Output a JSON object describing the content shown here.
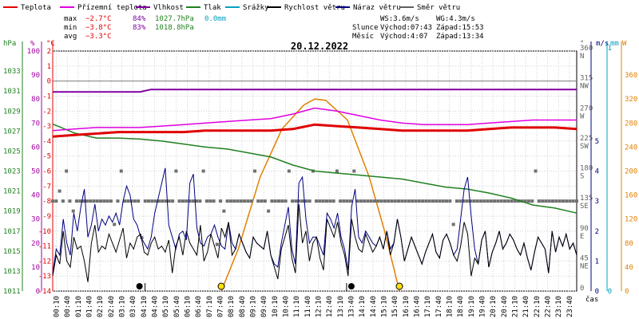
{
  "chart_data": {
    "type": "line",
    "title": "20.12.2022",
    "legend": [
      {
        "name": "Teplota",
        "color": "#e00000"
      },
      {
        "name": "Přízemní teplota",
        "color": "#e000e0"
      },
      {
        "name": "Vlhkost",
        "color": "#8000a0"
      },
      {
        "name": "Tlak",
        "color": "#208020"
      },
      {
        "name": "Srážky",
        "color": "#00a0c0"
      },
      {
        "name": "Rychlost větru",
        "color": "#000000"
      },
      {
        "name": "Náraz větru",
        "color": "#000080"
      },
      {
        "name": "Směr větru",
        "color": "#606060"
      }
    ],
    "stats": {
      "max": {
        "label": "max",
        "temp": "−2.7°C",
        "hum": "84%",
        "pres": "1027.7hPa",
        "rain": "0.0mm"
      },
      "min": {
        "label": "min",
        "temp": "−3.8°C",
        "hum": "83%",
        "pres": "1018.8hPa"
      },
      "avg": {
        "label": "avg",
        "temp": "−3.3°C"
      }
    },
    "wind_info": {
      "ws": "WS:3.6m/s",
      "wg": "WG:4.3m/s"
    },
    "sun_info": {
      "label": "Slunce",
      "rise": "Východ:07:43",
      "set": "Západ:15:53"
    },
    "moon_info": {
      "label": "Měsíc",
      "rise": "Východ:4:07",
      "set": "Západ:13:34"
    },
    "axis_units": {
      "hpa": "hPa",
      "pct": "%",
      "temp": "°C",
      "deg": "°",
      "ms": "m/s",
      "mm": "mm",
      "w": "W",
      "time": "čas"
    },
    "axes": {
      "temp": {
        "min": -14,
        "max": 2,
        "ticks": [
          2,
          1,
          0,
          -1,
          -2,
          -3,
          -4,
          -5,
          -6,
          -7,
          -8,
          -9,
          -10,
          -11,
          -12,
          -13,
          -14
        ]
      },
      "pct": {
        "min": 0,
        "max": 100,
        "ticks": [
          100,
          90,
          80,
          70,
          60,
          50,
          40,
          30,
          20,
          10,
          0
        ]
      },
      "hpa": {
        "min": 1011,
        "max": 1035,
        "ticks": [
          1033,
          1031,
          1029,
          1027,
          1025,
          1023,
          1021,
          1019,
          1017,
          1015,
          1013,
          1011
        ]
      },
      "deg": {
        "min": 0,
        "max": 360,
        "ticks": [
          {
            "v": 360,
            "l": "360",
            "d": "N"
          },
          {
            "v": 315,
            "l": "315",
            "d": "NW"
          },
          {
            "v": 270,
            "l": "270",
            "d": "W"
          },
          {
            "v": 225,
            "l": "225",
            "d": "SW"
          },
          {
            "v": 180,
            "l": "180",
            "d": "S"
          },
          {
            "v": 135,
            "l": "135",
            "d": "SE"
          },
          {
            "v": 90,
            "l": "90",
            "d": "E"
          },
          {
            "v": 45,
            "l": "45",
            "d": "NE"
          },
          {
            "v": 0,
            "l": "0",
            "d": ""
          }
        ]
      },
      "ms": {
        "min": 0,
        "max": 8,
        "ticks": [
          5,
          4,
          3,
          2,
          1,
          0
        ]
      },
      "mm": {
        "ticks": [
          1,
          0
        ]
      },
      "w": {
        "min": 0,
        "max": 400,
        "ticks": [
          360,
          320,
          280,
          240,
          200,
          160,
          120,
          80,
          40,
          0
        ]
      }
    },
    "x_ticks": [
      "00:10",
      "00:40",
      "01:10",
      "01:40",
      "02:10",
      "02:40",
      "03:10",
      "03:40",
      "04:10",
      "04:40",
      "05:10",
      "05:40",
      "06:10",
      "06:40",
      "07:10",
      "07:40",
      "08:10",
      "08:40",
      "09:10",
      "09:40",
      "10:10",
      "10:40",
      "11:10",
      "11:40",
      "12:10",
      "12:40",
      "13:10",
      "13:40",
      "14:10",
      "14:40",
      "15:10",
      "15:40",
      "16:10",
      "16:40",
      "17:10",
      "17:40",
      "18:10",
      "18:40",
      "19:10",
      "19:40",
      "20:10",
      "20:40",
      "21:10",
      "21:40",
      "22:10",
      "22:40",
      "23:10",
      "23:40"
    ],
    "series": {
      "temperature": {
        "hours": [
          0,
          1,
          2,
          3,
          4,
          5,
          6,
          7,
          8,
          9,
          10,
          11,
          12,
          13,
          14,
          15,
          16,
          17,
          18,
          19,
          20,
          21,
          22,
          23,
          24
        ],
        "values": [
          -3.7,
          -3.6,
          -3.5,
          -3.4,
          -3.4,
          -3.4,
          -3.4,
          -3.3,
          -3.3,
          -3.3,
          -3.3,
          -3.2,
          -2.9,
          -3.0,
          -3.1,
          -3.2,
          -3.3,
          -3.3,
          -3.3,
          -3.3,
          -3.2,
          -3.1,
          -3.1,
          -3.1,
          -3.2
        ]
      },
      "ground_temperature": {
        "hours": [
          0,
          1,
          2,
          3,
          4,
          5,
          6,
          7,
          8,
          9,
          10,
          11,
          12,
          13,
          14,
          15,
          16,
          17,
          18,
          19,
          20,
          21,
          22,
          23,
          24
        ],
        "values": [
          -3.3,
          -3.2,
          -3.1,
          -3.1,
          -3.1,
          -3.0,
          -2.9,
          -2.8,
          -2.7,
          -2.6,
          -2.5,
          -2.2,
          -1.8,
          -2.0,
          -2.3,
          -2.6,
          -2.8,
          -2.9,
          -2.9,
          -2.9,
          -2.8,
          -2.7,
          -2.6,
          -2.6,
          -2.6
        ]
      },
      "humidity": {
        "hours": [
          0,
          4,
          4.5,
          24
        ],
        "values": [
          83,
          83,
          84,
          84
        ]
      },
      "pressure": {
        "hours": [
          0,
          1,
          2,
          3,
          4,
          5,
          6,
          7,
          8,
          9,
          10,
          11,
          12,
          13,
          14,
          15,
          16,
          17,
          18,
          19,
          20,
          21,
          22,
          23,
          24
        ],
        "values": [
          1027.7,
          1026.8,
          1026.3,
          1026.3,
          1026.2,
          1026.0,
          1025.7,
          1025.4,
          1025.2,
          1024.8,
          1024.4,
          1023.6,
          1023.0,
          1022.8,
          1022.6,
          1022.4,
          1022.2,
          1021.8,
          1021.4,
          1021.2,
          1020.8,
          1020.3,
          1019.6,
          1019.3,
          1018.8
        ]
      },
      "wind_speed": {
        "values": [
          0.5,
          1.2,
          0.9,
          2.0,
          1.0,
          0.8,
          1.8,
          1.4,
          1.5,
          1.0,
          0.3,
          1.6,
          2.2,
          1.3,
          1.5,
          1.4,
          1.9,
          1.6,
          1.3,
          1.7,
          2.1,
          1.1,
          1.6,
          1.4,
          1.8,
          1.9,
          1.3,
          1.2,
          1.6,
          1.8,
          1.4,
          1.5,
          1.3,
          1.7,
          0.6,
          1.5,
          1.8,
          1.2,
          2.0,
          1.6,
          1.4,
          1.2,
          2.2,
          1.0,
          1.3,
          1.9,
          1.5,
          1.1,
          2.1,
          1.8,
          2.3,
          1.2,
          1.4,
          1.9,
          1.6,
          1.3,
          1.1,
          1.8,
          1.6,
          1.5,
          1.4,
          2.0,
          1.2,
          0.8,
          0.4,
          1.4,
          1.8,
          2.2,
          1.1,
          0.6,
          2.9,
          1.6,
          2.0,
          1.0,
          1.6,
          1.8,
          1.1,
          0.7,
          2.4,
          2.1,
          1.8,
          2.3,
          1.6,
          1.2,
          0.5,
          2.4,
          1.8,
          1.4,
          1.3,
          1.9,
          1.6,
          1.3,
          1.5,
          1.8,
          1.4,
          2.0,
          1.2,
          1.6,
          2.4,
          1.8,
          1.0,
          1.4,
          1.8,
          1.5,
          1.2,
          0.9,
          1.3,
          1.6,
          1.9,
          1.3,
          1.1,
          1.7,
          1.9,
          1.6,
          1.2,
          1.0,
          1.5,
          2.3,
          1.9,
          0.5,
          1.1,
          0.9,
          1.7,
          2.0,
          0.8,
          1.3,
          1.6,
          2.0,
          1.4,
          1.6,
          1.9,
          1.7,
          1.4,
          1.2,
          1.6,
          1.1,
          0.7,
          1.3,
          1.8,
          1.6,
          1.4,
          0.6,
          2.0,
          1.3,
          1.8,
          1.5,
          1.9,
          1.4,
          1.6,
          1.2
        ]
      },
      "wind_gust": {
        "values": [
          0.6,
          1.4,
          1.2,
          2.4,
          1.6,
          1.2,
          2.6,
          2.0,
          2.8,
          3.4,
          1.8,
          2.2,
          2.9,
          2.0,
          2.4,
          2.2,
          2.5,
          2.3,
          2.6,
          2.2,
          3.0,
          3.5,
          3.2,
          2.4,
          2.2,
          1.8,
          1.6,
          1.4,
          1.8,
          2.6,
          3.1,
          3.6,
          4.1,
          2.2,
          1.8,
          1.4,
          1.9,
          2.0,
          1.7,
          3.6,
          3.9,
          2.1,
          1.6,
          1.5,
          1.8,
          1.9,
          2.2,
          1.8,
          1.5,
          1.4,
          2.3,
          1.6,
          1.4,
          1.9,
          1.6,
          1.3,
          1.1,
          1.8,
          1.6,
          1.5,
          1.4,
          2.0,
          1.2,
          0.9,
          0.8,
          1.6,
          2.2,
          2.8,
          1.4,
          0.9,
          3.6,
          3.8,
          2.4,
          1.6,
          1.8,
          1.8,
          1.5,
          1.2,
          2.6,
          2.4,
          2.1,
          2.6,
          1.8,
          1.4,
          0.7,
          2.8,
          3.4,
          1.8,
          1.6,
          2.0,
          1.8,
          1.6,
          1.5,
          1.8,
          1.4,
          2.0,
          1.4,
          1.6,
          2.4,
          1.8,
          1.0,
          1.4,
          1.8,
          1.5,
          1.2,
          0.9,
          1.3,
          1.6,
          1.9,
          1.3,
          1.1,
          1.7,
          1.9,
          1.6,
          1.2,
          1.4,
          2.4,
          3.4,
          3.8,
          2.5,
          1.4,
          0.9,
          1.7,
          2.0,
          0.8,
          1.3,
          1.6,
          2.0,
          1.4,
          1.6,
          1.9,
          1.7,
          1.4,
          1.2,
          1.6,
          1.1,
          0.7,
          1.3,
          1.8,
          1.6,
          1.4,
          0.6,
          2.0,
          1.3,
          1.8,
          1.5,
          1.9,
          1.4,
          1.6,
          1.2
        ]
      },
      "wind_direction": {
        "values": [
          135,
          135,
          150,
          135,
          180,
          135,
          120,
          135,
          135,
          135,
          135,
          135,
          135,
          135,
          135,
          135,
          135,
          135,
          100,
          135,
          180,
          135,
          135,
          135,
          135,
          135,
          80,
          135,
          135,
          135,
          135,
          135,
          135,
          135,
          135,
          135,
          180,
          135,
          135,
          135,
          135,
          135,
          135,
          135,
          180,
          135,
          135,
          135,
          70,
          135,
          120,
          135,
          135,
          135,
          135,
          135,
          135,
          135,
          135,
          180,
          135,
          135,
          135,
          120,
          135,
          135,
          135,
          135,
          135,
          180,
          135,
          135,
          135,
          135,
          135,
          135,
          180,
          135,
          135,
          135,
          135,
          135,
          135,
          180,
          135,
          135,
          135,
          135,
          180,
          135,
          135,
          135,
          135,
          135,
          135,
          135,
          135,
          135,
          135,
          135,
          135,
          135,
          135,
          135,
          135,
          135,
          135,
          135,
          135,
          135,
          135,
          135,
          135,
          135,
          135,
          135,
          135,
          100,
          135,
          135,
          135,
          135,
          135,
          135,
          135,
          135,
          135,
          135,
          135,
          135,
          135,
          135,
          135,
          135,
          135,
          135,
          135,
          135,
          135,
          135,
          135,
          180,
          135,
          135,
          135,
          135,
          135,
          135,
          135,
          135,
          135,
          135,
          135,
          135
        ]
      },
      "solar_radiation": {
        "hours": [
          7.72,
          8.5,
          9.5,
          10.5,
          11.5,
          12,
          12.5,
          13.5,
          14.5,
          15.2,
          15.88
        ],
        "values": [
          0,
          70,
          190,
          270,
          310,
          320,
          318,
          285,
          190,
          100,
          0
        ]
      }
    },
    "markers": {
      "moonrise_hour": 4.12,
      "moonset_hour": 13.57,
      "sunrise_hour": 7.72,
      "sunset_hour": 15.88
    }
  }
}
